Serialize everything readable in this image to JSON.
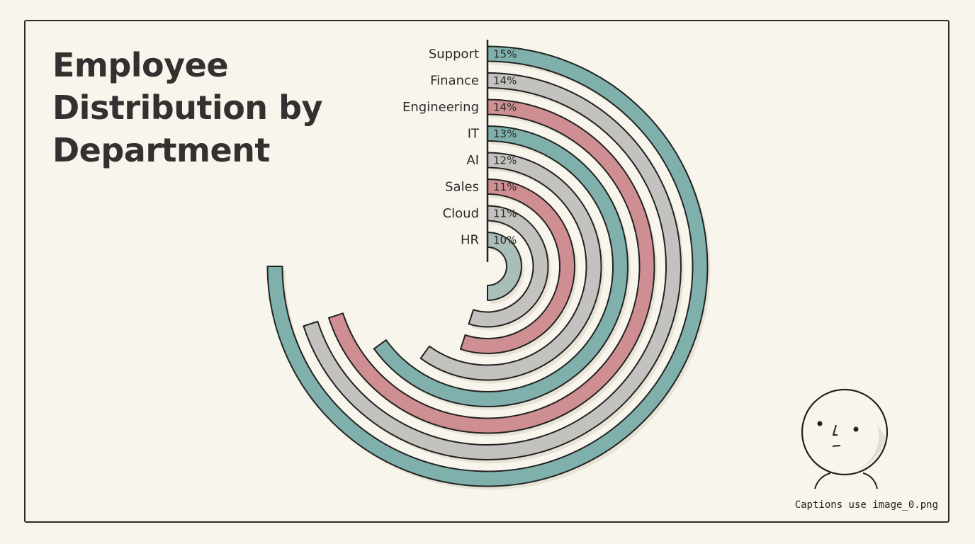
{
  "title": "Employee Distribution by Department",
  "caption": "Captions use image_0.png",
  "chart_data": {
    "type": "radial-bar",
    "title": "Employee Distribution by Department",
    "unit": "%",
    "categories": [
      "Support",
      "Finance",
      "Engineering",
      "IT",
      "AI",
      "Sales",
      "Cloud",
      "HR"
    ],
    "values": [
      15,
      14,
      14,
      13,
      12,
      11,
      11,
      10
    ],
    "labels": [
      "15%",
      "14%",
      "14%",
      "13%",
      "12%",
      "11%",
      "11%",
      "10%"
    ],
    "colors": [
      "#7fb0ab",
      "#c4c2bf",
      "#cf8f92",
      "#7fb0ab",
      "#c4c2bf",
      "#cf8f92",
      "#c4c2bf",
      "#a9bdb9"
    ]
  },
  "decoration": {
    "mascot_icon": "smiley-face-icon"
  }
}
